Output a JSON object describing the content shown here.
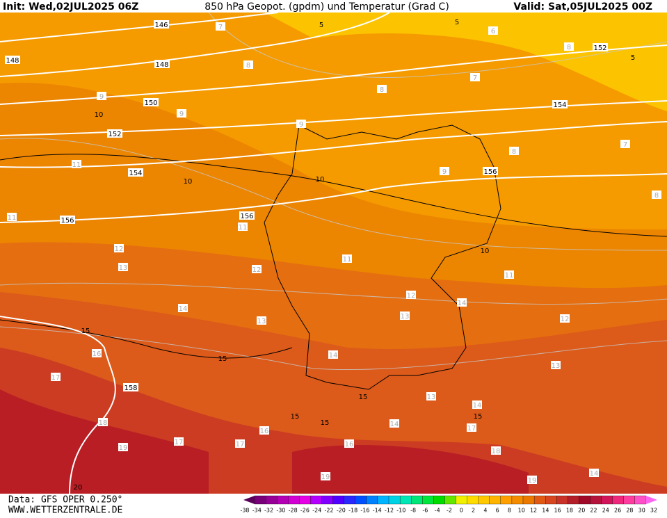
{
  "header": {
    "init": "Init: Wed,02JUL2025 06Z",
    "title": "850 hPa Geopot. (gpdm) und Temperatur (Grad C)",
    "valid": "Valid: Sat,05JUL2025 00Z"
  },
  "footer": {
    "source": "Data: GFS OPER 0.250°",
    "site": "WWW.WETTERZENTRALE.DE"
  },
  "labels": {
    "geopotential": [
      146,
      148,
      148,
      150,
      152,
      154,
      156,
      156,
      154,
      156,
      152,
      158
    ],
    "temperature_major": [
      5,
      5,
      5,
      10,
      10,
      10,
      10,
      15,
      15,
      15,
      15,
      15,
      15,
      20
    ],
    "temperature_minor": [
      7,
      8,
      9,
      9,
      6,
      7,
      8,
      8,
      9,
      8,
      7,
      9,
      8,
      11,
      11,
      11,
      12,
      13,
      12,
      11,
      11,
      12,
      14,
      13,
      12,
      14,
      13,
      16,
      17,
      14,
      13,
      13,
      14,
      14,
      18,
      16,
      17,
      17,
      19,
      16,
      17,
      18,
      19,
      19,
      14
    ]
  },
  "colorbar": {
    "labels": [
      -38,
      -34,
      -32,
      -30,
      -28,
      -26,
      -24,
      -22,
      -20,
      -18,
      -16,
      -14,
      -12,
      -10,
      -8,
      -6,
      -4,
      -2,
      0,
      2,
      4,
      6,
      8,
      10,
      12,
      14,
      16,
      18,
      20,
      22,
      24,
      26,
      28,
      30,
      32
    ],
    "colors": [
      "#5a005a",
      "#780078",
      "#960096",
      "#b400b4",
      "#d200d2",
      "#e600e6",
      "#b400ff",
      "#8200ff",
      "#5000ff",
      "#2828ff",
      "#0050ff",
      "#0082ff",
      "#00b4ff",
      "#00d2e6",
      "#00e6b4",
      "#00e678",
      "#00e63c",
      "#00dc00",
      "#64e600",
      "#f0f000",
      "#ffdc00",
      "#ffc800",
      "#ffb400",
      "#ffa000",
      "#f58c00",
      "#eb7800",
      "#e15a14",
      "#d7461e",
      "#c83228",
      "#b41e28",
      "#a00a28",
      "#b4143c",
      "#d2145a",
      "#f0287d",
      "#ff3ca0",
      "#ff50c8",
      "#ff64f0"
    ]
  }
}
